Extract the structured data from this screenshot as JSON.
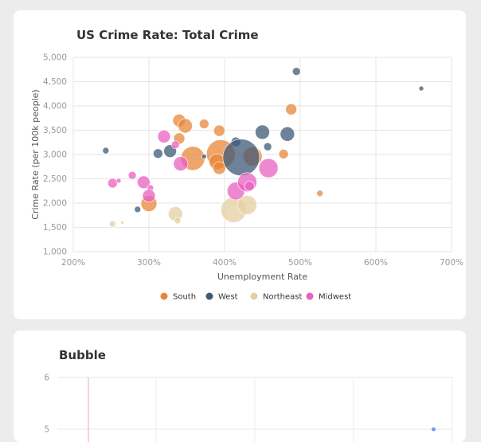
{
  "chart_data": [
    {
      "type": "scatter",
      "title": "US Crime Rate: Total Crime",
      "xlabel": "Unemployment Rate",
      "ylabel": "Crime Rate (per 100k people)",
      "xlim": [
        2,
        7
      ],
      "ylim": [
        1000,
        5000
      ],
      "x_ticks": [
        "200%",
        "300%",
        "400%",
        "500%",
        "600%",
        "700%"
      ],
      "y_ticks": [
        "1,000",
        "1,500",
        "2,000",
        "2,500",
        "3,000",
        "3,500",
        "4,000",
        "4,500",
        "5,000"
      ],
      "grid": true,
      "legend_position": "bottom",
      "series": [
        {
          "name": "South",
          "color": "#e8873a",
          "points": [
            {
              "x": 3.4,
              "y": 3700,
              "size": 8
            },
            {
              "x": 3.48,
              "y": 3590,
              "size": 9
            },
            {
              "x": 3.4,
              "y": 3330,
              "size": 7
            },
            {
              "x": 3.73,
              "y": 3630,
              "size": 6
            },
            {
              "x": 3.93,
              "y": 3490,
              "size": 7
            },
            {
              "x": 3.58,
              "y": 2920,
              "size": 15
            },
            {
              "x": 3.95,
              "y": 3010,
              "size": 18
            },
            {
              "x": 3.9,
              "y": 2850,
              "size": 10
            },
            {
              "x": 3.93,
              "y": 2720,
              "size": 8
            },
            {
              "x": 4.88,
              "y": 3930,
              "size": 7
            },
            {
              "x": 4.78,
              "y": 3010,
              "size": 6
            },
            {
              "x": 3.0,
              "y": 1990,
              "size": 10
            },
            {
              "x": 5.26,
              "y": 2200,
              "size": 4
            },
            {
              "x": 4.37,
              "y": 2960,
              "size": 12
            }
          ]
        },
        {
          "name": "West",
          "color": "#3f5a76",
          "points": [
            {
              "x": 2.43,
              "y": 3080,
              "size": 4
            },
            {
              "x": 3.12,
              "y": 3020,
              "size": 6
            },
            {
              "x": 3.28,
              "y": 3070,
              "size": 8
            },
            {
              "x": 4.15,
              "y": 3260,
              "size": 6
            },
            {
              "x": 4.5,
              "y": 3460,
              "size": 9
            },
            {
              "x": 4.83,
              "y": 3420,
              "size": 9
            },
            {
              "x": 4.57,
              "y": 3160,
              "size": 5
            },
            {
              "x": 4.95,
              "y": 4710,
              "size": 5
            },
            {
              "x": 6.6,
              "y": 4360,
              "size": 3
            },
            {
              "x": 2.85,
              "y": 1870,
              "size": 4
            },
            {
              "x": 3.73,
              "y": 2960,
              "size": 3
            },
            {
              "x": 4.22,
              "y": 2940,
              "size": 23
            }
          ]
        },
        {
          "name": "Northeast",
          "color": "#e6cfa3",
          "points": [
            {
              "x": 2.52,
              "y": 1570,
              "size": 4
            },
            {
              "x": 2.65,
              "y": 1600,
              "size": 2
            },
            {
              "x": 3.35,
              "y": 1780,
              "size": 9
            },
            {
              "x": 3.38,
              "y": 1640,
              "size": 4
            },
            {
              "x": 4.12,
              "y": 1860,
              "size": 16
            },
            {
              "x": 4.3,
              "y": 1960,
              "size": 12
            }
          ]
        },
        {
          "name": "Midwest",
          "color": "#e860c0",
          "points": [
            {
              "x": 2.52,
              "y": 2410,
              "size": 6
            },
            {
              "x": 2.6,
              "y": 2460,
              "size": 3
            },
            {
              "x": 2.78,
              "y": 2570,
              "size": 5
            },
            {
              "x": 2.93,
              "y": 2430,
              "size": 8
            },
            {
              "x": 3.02,
              "y": 2310,
              "size": 4
            },
            {
              "x": 3.0,
              "y": 2150,
              "size": 8
            },
            {
              "x": 3.2,
              "y": 3370,
              "size": 8
            },
            {
              "x": 3.35,
              "y": 3200,
              "size": 5
            },
            {
              "x": 3.42,
              "y": 2810,
              "size": 9
            },
            {
              "x": 4.15,
              "y": 2250,
              "size": 11
            },
            {
              "x": 4.3,
              "y": 2430,
              "size": 12
            },
            {
              "x": 4.33,
              "y": 2350,
              "size": 6
            },
            {
              "x": 4.58,
              "y": 2720,
              "size": 12
            }
          ]
        }
      ]
    },
    {
      "type": "scatter",
      "title": "Bubble",
      "xlim": [
        0,
        4
      ],
      "ylim": [
        4.6,
        6
      ],
      "y_ticks": [
        "6",
        "5"
      ],
      "grid": true,
      "series": [
        {
          "color": "#7b9bf0",
          "points": [
            {
              "x": 3.81,
              "y": 5,
              "size": 2.5
            }
          ]
        }
      ]
    }
  ]
}
